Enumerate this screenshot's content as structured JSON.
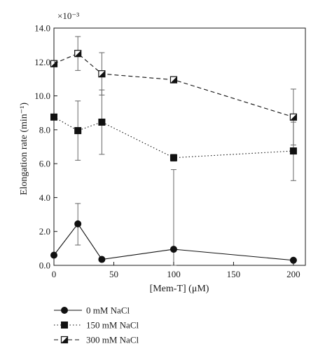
{
  "chart_data": {
    "type": "line",
    "xlabel": "[Mem-T] (μM)",
    "ylabel": "Elongation rate (min⁻¹)",
    "y_multiplier": "×10⁻³",
    "xlim": [
      0,
      210
    ],
    "ylim": [
      0,
      14
    ],
    "x_ticks": [
      0,
      50,
      100,
      150,
      200
    ],
    "y_ticks": [
      0,
      2,
      4,
      6,
      8,
      10,
      12,
      14
    ],
    "x_tick_labels": [
      "0",
      "50",
      "100",
      "150",
      "200"
    ],
    "y_tick_labels": [
      "0.0",
      "2.0",
      "4.0",
      "6.0",
      "8.0",
      "10.0",
      "12.0",
      "14.0"
    ],
    "x": [
      0,
      20,
      40,
      100,
      200
    ],
    "series": [
      {
        "name": "0 mM NaCl",
        "marker": "circle",
        "line": "solid",
        "values": [
          0.6,
          2.45,
          0.35,
          0.95,
          0.3
        ],
        "err_up": [
          0.0,
          1.2,
          0.0,
          4.7,
          0.0
        ],
        "err_down": [
          0.0,
          1.25,
          0.0,
          0.95,
          0.0
        ]
      },
      {
        "name": "150 mM NaCl",
        "marker": "square",
        "line": "dotted",
        "values": [
          8.75,
          7.95,
          8.45,
          6.35,
          6.75
        ],
        "err_up": [
          0.0,
          1.75,
          1.9,
          0.2,
          1.7
        ],
        "err_down": [
          0.0,
          1.75,
          1.9,
          0.2,
          1.75
        ]
      },
      {
        "name": "300 mM NaCl",
        "marker": "half-square",
        "line": "dashed",
        "values": [
          11.9,
          12.5,
          11.3,
          10.95,
          8.75
        ],
        "err_up": [
          0.0,
          1.0,
          1.25,
          0.0,
          1.65
        ],
        "err_down": [
          0.0,
          1.0,
          1.25,
          0.0,
          1.65
        ]
      }
    ],
    "grid": false,
    "legend_position": "below"
  }
}
